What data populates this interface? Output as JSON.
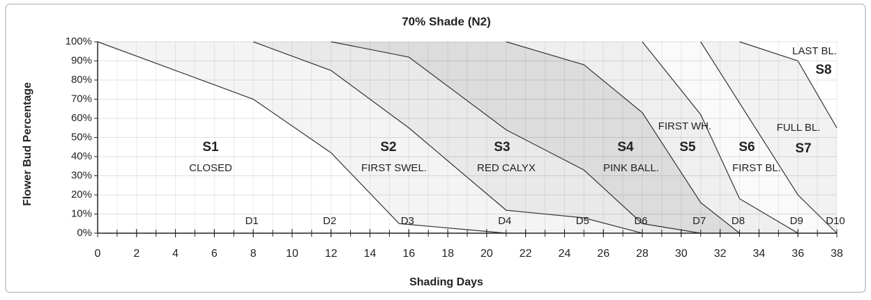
{
  "chart_data": {
    "type": "line",
    "title": "70% Shade (N2)",
    "x_label": "Shading Days",
    "y_label": "Flower Bud Percentage",
    "xlim": [
      0,
      38
    ],
    "ylim": [
      0,
      100
    ],
    "xticks": [
      0,
      2,
      4,
      6,
      8,
      10,
      12,
      14,
      16,
      18,
      20,
      22,
      24,
      26,
      28,
      30,
      32,
      34,
      36,
      38
    ],
    "yticks": [
      {
        "value": 0,
        "label": "0%"
      },
      {
        "value": 10,
        "label": "10%"
      },
      {
        "value": 20,
        "label": "20%"
      },
      {
        "value": 30,
        "label": "30%"
      },
      {
        "value": 40,
        "label": "40%"
      },
      {
        "value": 50,
        "label": "50%"
      },
      {
        "value": 60,
        "label": "60%"
      },
      {
        "value": 70,
        "label": "70%"
      },
      {
        "value": 80,
        "label": "80%"
      },
      {
        "value": 90,
        "label": "90%"
      },
      {
        "value": 100,
        "label": "100%"
      }
    ],
    "grid": true,
    "series": [
      {
        "color": "#333333",
        "fill": "#f4f4f4",
        "x": [
          0,
          8,
          12,
          15.5,
          21
        ],
        "values": [
          100,
          70,
          42,
          5,
          0
        ]
      },
      {
        "color": "#333333",
        "fill": "#e9e9e9",
        "x": [
          8,
          12,
          16,
          21,
          25,
          28
        ],
        "values": [
          100,
          85,
          55,
          12,
          8,
          0
        ]
      },
      {
        "color": "#333333",
        "fill": "#dcdcdc",
        "x": [
          12,
          16,
          21,
          25,
          28,
          31
        ],
        "values": [
          100,
          92,
          54,
          33,
          5,
          0
        ]
      },
      {
        "color": "#333333",
        "fill": "#efefef",
        "x": [
          21,
          25,
          28,
          31,
          33
        ],
        "values": [
          100,
          88,
          63,
          16,
          0
        ]
      },
      {
        "color": "#333333",
        "fill": "#fafafa",
        "x": [
          28,
          31,
          33,
          36
        ],
        "values": [
          100,
          62,
          18,
          0
        ]
      },
      {
        "color": "#333333",
        "fill": "#f2f2f2",
        "x": [
          31,
          36,
          38
        ],
        "values": [
          100,
          20,
          0
        ]
      },
      {
        "color": "#333333",
        "fill": "#ffffff",
        "x": [
          33,
          36,
          38
        ],
        "values": [
          100,
          90,
          55
        ]
      }
    ],
    "stages": [
      {
        "stage": "S1",
        "label": "CLOSED"
      },
      {
        "stage": "S2",
        "label": "FIRST SWEL."
      },
      {
        "stage": "S3",
        "label": "RED CALYX"
      },
      {
        "stage": "S4",
        "label": "PINK BALL."
      },
      {
        "stage": "S5",
        "label": "FIRST WH."
      },
      {
        "stage": "S6",
        "label": "FIRST BL."
      },
      {
        "stage": "S7",
        "label": "FULL BL."
      },
      {
        "stage": "S8",
        "label": "LAST BL."
      }
    ],
    "day_markers": [
      {
        "label": "D1",
        "x": 8
      },
      {
        "label": "D2",
        "x": 12
      },
      {
        "label": "D3",
        "x": 16
      },
      {
        "label": "D4",
        "x": 21
      },
      {
        "label": "D5",
        "x": 25
      },
      {
        "label": "D6",
        "x": 28
      },
      {
        "label": "D7",
        "x": 31
      },
      {
        "label": "D8",
        "x": 33
      },
      {
        "label": "D9",
        "x": 36
      },
      {
        "label": "D10",
        "x": 38
      }
    ]
  }
}
